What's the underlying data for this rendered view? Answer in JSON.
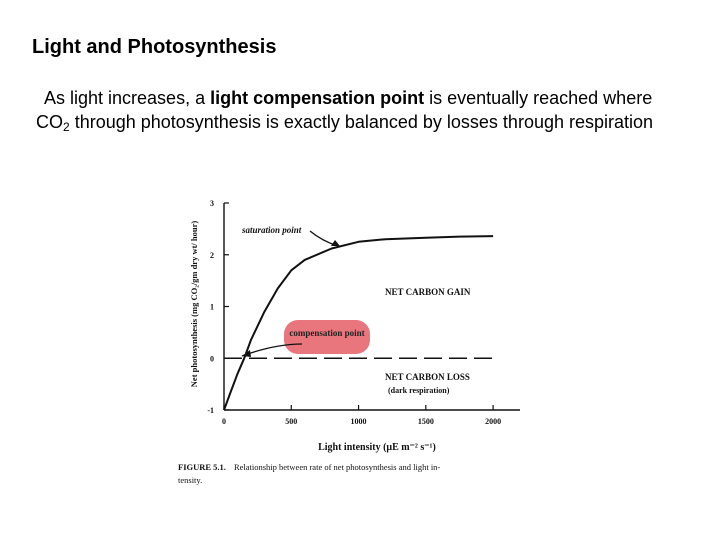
{
  "slide": {
    "title": "Light and Photosynthesis",
    "text": {
      "part1": "As light increases, a ",
      "bold": "light compensation point",
      "part2": " is eventually reached where CO",
      "sub": "2",
      "part3": " through photosynthesis is exactly balanced by losses through respiration"
    }
  },
  "chart_data": {
    "type": "line",
    "xlabel": "Light intensity (μE m⁻² s⁻¹)",
    "ylabel": "Net photosynthesis (mg CO₂/gm dry wt/ hour)",
    "x_ticks": [
      0,
      500,
      1000,
      1500,
      2000
    ],
    "y_ticks": [
      -1,
      0,
      1,
      2,
      3
    ],
    "xlim": [
      0,
      2200
    ],
    "ylim": [
      -1,
      3
    ],
    "grid": false,
    "series": [
      {
        "style": "solid",
        "x": [
          0,
          50,
          100,
          150,
          200,
          300,
          400,
          500,
          600,
          800,
          1000,
          1200,
          1500,
          1750,
          2000
        ],
        "y": [
          -1.0,
          -0.65,
          -0.3,
          0.0,
          0.35,
          0.9,
          1.35,
          1.7,
          1.9,
          2.12,
          2.25,
          2.3,
          2.33,
          2.35,
          2.36
        ]
      },
      {
        "style": "dashed",
        "x": [
          0,
          2000
        ],
        "y": [
          0,
          0
        ]
      }
    ],
    "annotations": {
      "saturation": "saturation point",
      "compensation": "compensation point",
      "gain": "NET CARBON GAIN",
      "loss": "NET CARBON LOSS",
      "loss_sub": "(dark respiration)"
    },
    "caption": {
      "label": "FIGURE 5.1.",
      "text": "Relationship between rate of net photosynthesis and light in-",
      "text2": "tensity."
    }
  }
}
